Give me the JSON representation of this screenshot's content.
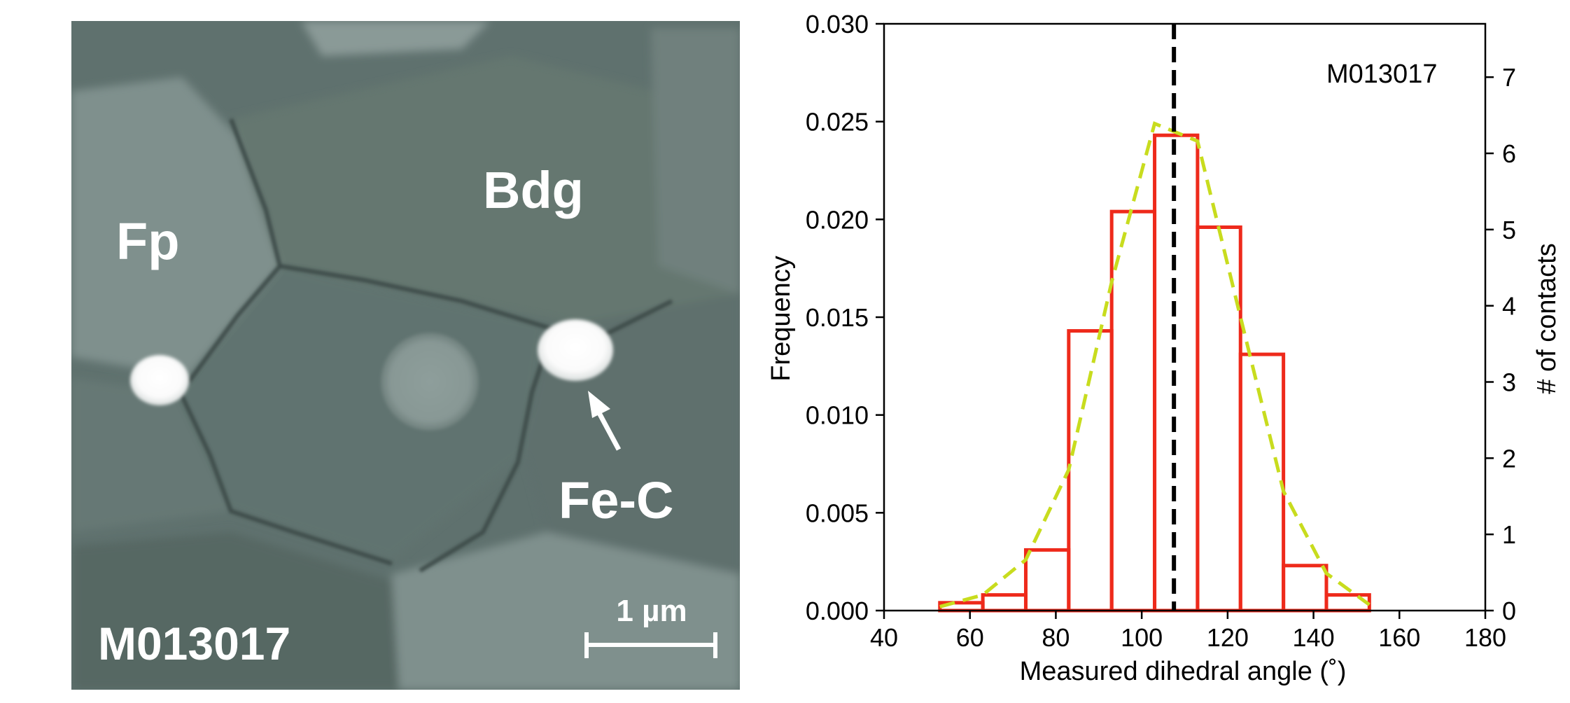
{
  "micrograph": {
    "labels": {
      "fp": "Fp",
      "bdg": "Bdg",
      "fe_c": "Fe-C",
      "sample_id": "M013017",
      "scale_bar": "1 µm"
    }
  },
  "chart_data": {
    "type": "bar",
    "xlabel": "Measured dihedral angle (˚)",
    "ylabel": "Frequency",
    "ylabel_right": "# of contacts",
    "annotation": "M013017",
    "xlim": [
      40,
      180
    ],
    "ylim": [
      0,
      0.03
    ],
    "ylim_right": [
      0,
      7.7
    ],
    "xticks": [
      40,
      60,
      80,
      100,
      120,
      140,
      160,
      180
    ],
    "yticks": [
      0.0,
      0.005,
      0.01,
      0.015,
      0.02,
      0.025,
      0.03
    ],
    "ytick_labels": [
      "0.000",
      "0.005",
      "0.010",
      "0.015",
      "0.020",
      "0.025",
      "0.030"
    ],
    "yticks_right": [
      0,
      1,
      2,
      3,
      4,
      5,
      6,
      7
    ],
    "histogram": {
      "bin_edges": [
        53,
        63,
        73,
        83,
        93,
        103,
        113,
        123,
        133,
        143,
        153
      ],
      "values": [
        0.0004,
        0.0008,
        0.0031,
        0.0143,
        0.0204,
        0.0243,
        0.0196,
        0.0131,
        0.0023,
        0.0008
      ],
      "edge_color": "#ee2a1b"
    },
    "fit_curve": {
      "x": [
        53,
        63,
        73,
        83,
        93,
        103,
        113,
        123,
        133,
        143,
        153
      ],
      "y": [
        0.0002,
        0.0008,
        0.0026,
        0.0072,
        0.0168,
        0.0249,
        0.024,
        0.015,
        0.0061,
        0.0019,
        0.0003
      ],
      "style": "dashed",
      "color": "#c8dc1e"
    },
    "mean_line": {
      "x": 107.5,
      "style": "dashed",
      "color": "#000000"
    }
  }
}
